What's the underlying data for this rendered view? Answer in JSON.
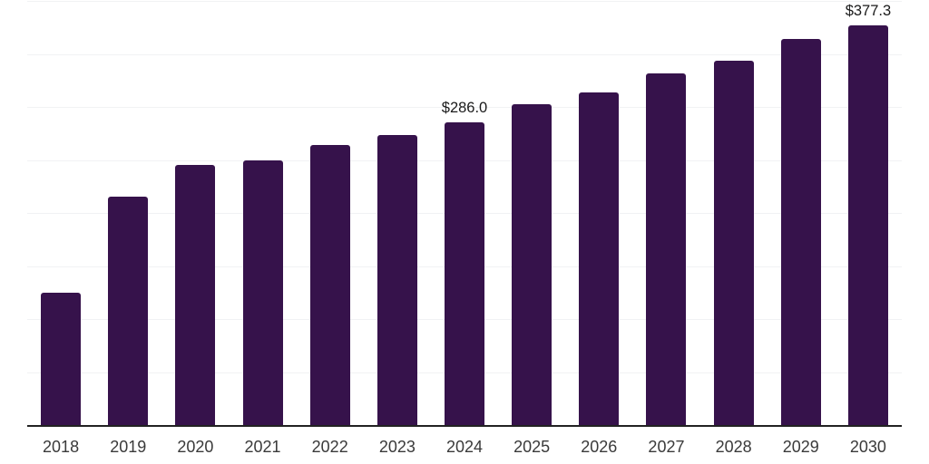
{
  "chart_data": {
    "type": "bar",
    "title": "",
    "xlabel": "",
    "ylabel": "",
    "categories": [
      "2018",
      "2019",
      "2020",
      "2021",
      "2022",
      "2023",
      "2024",
      "2025",
      "2026",
      "2027",
      "2028",
      "2029",
      "2030"
    ],
    "values": [
      124.8,
      215.6,
      245.2,
      249.5,
      264.0,
      273.7,
      286.0,
      302.7,
      313.5,
      331.7,
      343.4,
      364.4,
      377.3
    ],
    "data_labels": [
      {
        "category": "2024",
        "text": "$286.0"
      },
      {
        "category": "2030",
        "text": "$377.3"
      }
    ],
    "ylim": [
      0,
      400
    ],
    "grid_step": 50,
    "grid": true,
    "legend": false,
    "y_tick_labels_visible": false,
    "value_prefix": "$"
  },
  "colors": {
    "bar": "#36124B",
    "gridline": "#F1F2F4",
    "axis": "#222222",
    "value_label": "#1A1A1A",
    "tick_label": "#3A3A3A",
    "background": "#FFFFFF"
  }
}
